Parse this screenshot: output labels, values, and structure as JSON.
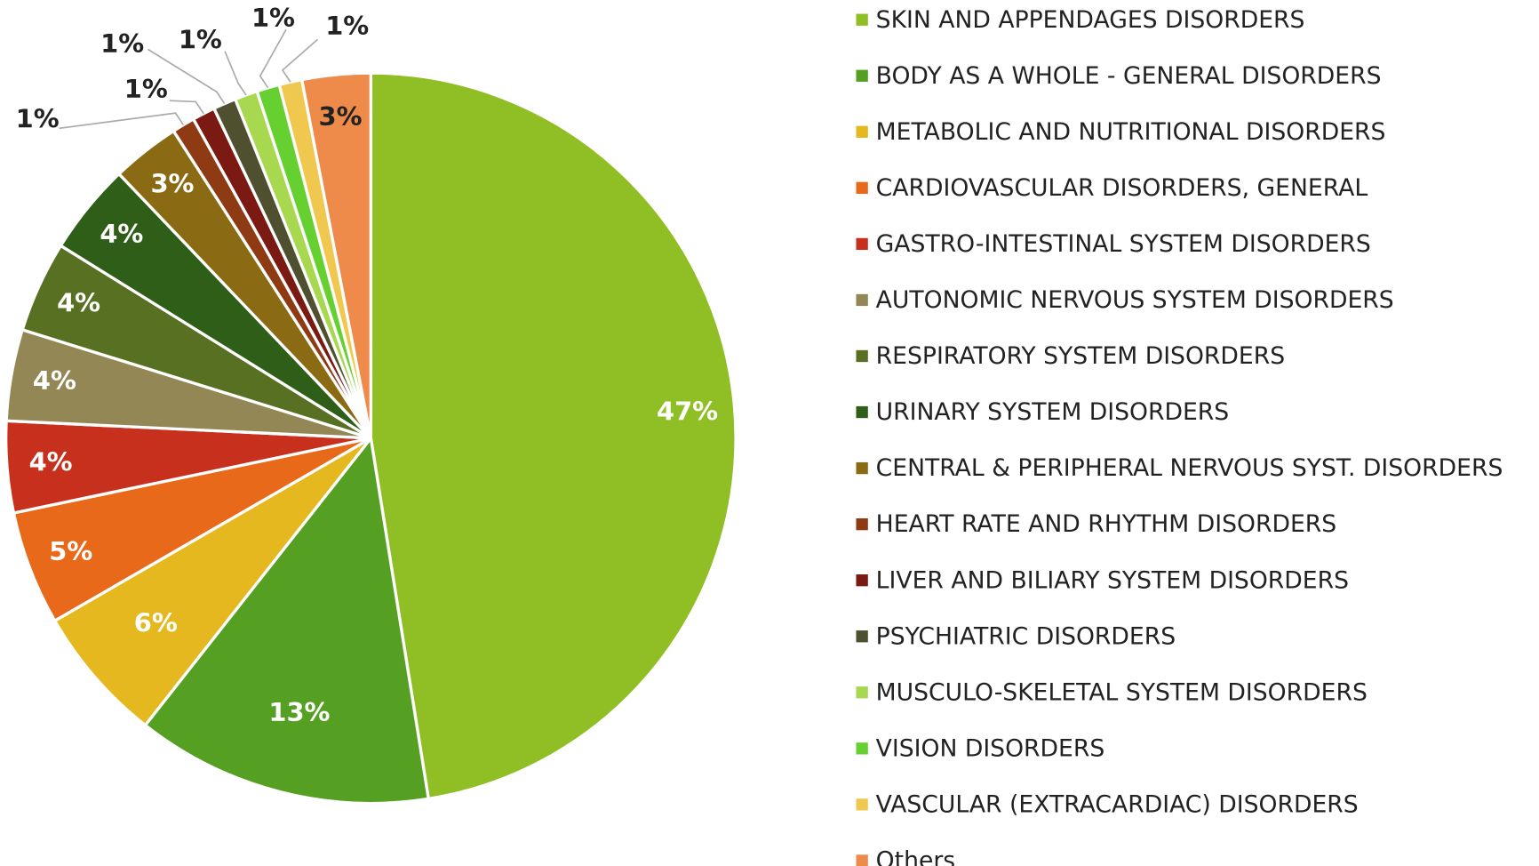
{
  "chart_data": {
    "type": "pie",
    "categories": [
      "SKIN AND APPENDAGES DISORDERS",
      "BODY AS A WHOLE - GENERAL DISORDERS",
      "METABOLIC AND NUTRITIONAL DISORDERS",
      "CARDIOVASCULAR DISORDERS, GENERAL",
      "GASTRO-INTESTINAL SYSTEM DISORDERS",
      "AUTONOMIC NERVOUS SYSTEM DISORDERS",
      "RESPIRATORY SYSTEM DISORDERS",
      "URINARY SYSTEM DISORDERS",
      "CENTRAL & PERIPHERAL NERVOUS SYST. DISORDERS",
      "HEART RATE AND RHYTHM DISORDERS",
      "LIVER AND BILIARY SYSTEM DISORDERS",
      "PSYCHIATRIC DISORDERS",
      "MUSCULO-SKELETAL SYSTEM DISORDERS",
      "VISION DISORDERS",
      "VASCULAR (EXTRACARDIAC) DISORDERS",
      "Others"
    ],
    "values": [
      47,
      13,
      6,
      5,
      4,
      4,
      4,
      4,
      3,
      1,
      1,
      1,
      1,
      1,
      1,
      3
    ],
    "value_labels": [
      "47%",
      "13%",
      "6%",
      "5%",
      "4%",
      "4%",
      "4%",
      "4%",
      "3%",
      "1%",
      "1%",
      "1%",
      "1%",
      "1%",
      "1%",
      "3%"
    ],
    "colors": [
      "#8fbf24",
      "#55a023",
      "#e6b820",
      "#e8691a",
      "#c8301e",
      "#938755",
      "#587022",
      "#2e5e18",
      "#8a6a12",
      "#8e3a12",
      "#7a1a12",
      "#4e5030",
      "#a8d850",
      "#66d030",
      "#f0c850",
      "#ee8a4a"
    ],
    "legend": "right"
  }
}
